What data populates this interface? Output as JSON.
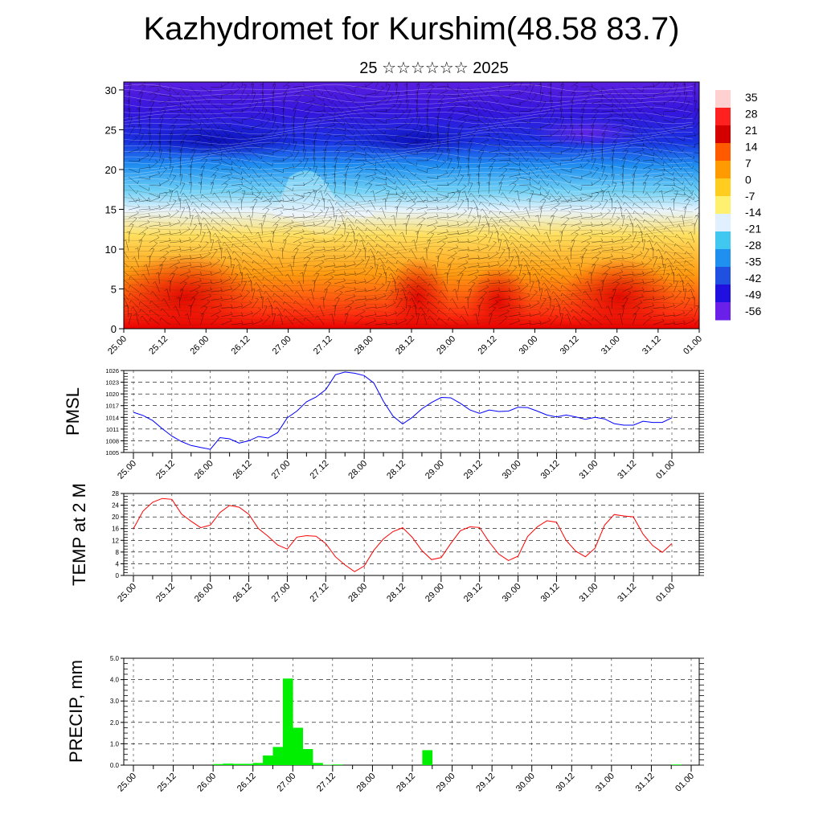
{
  "header": {
    "title": "Kazhydromet for Kurshim(48.58 83.7)",
    "subtitle": "25 ☆☆☆☆☆☆ 2025"
  },
  "colors": {
    "pmsl_line": "#0000ff",
    "temp_line": "#ff0000",
    "precip_bar": "#00ee00"
  },
  "chart_data": [
    {
      "type": "heatmap",
      "name": "cross-section",
      "x_ticks": [
        "25.00",
        "25.12",
        "26.00",
        "26.12",
        "27.00",
        "27.12",
        "28.00",
        "28.12",
        "29.00",
        "29.12",
        "30.00",
        "30.12",
        "31.00",
        "31.12",
        "01.00"
      ],
      "y_ticks": [
        0,
        5,
        10,
        15,
        20,
        25,
        30
      ],
      "ylim": [
        0,
        31
      ],
      "colorbar_labels": [
        "35",
        "28",
        "21",
        "14",
        "7",
        "0",
        "-7",
        "-14",
        "-21",
        "-28",
        "-35",
        "-42",
        "-49",
        "-56"
      ],
      "colorbar_range": [
        -63,
        42
      ],
      "colorbar_stops": [
        "#ffd0d0",
        "#ff2020",
        "#d40000",
        "#ff5a00",
        "#ff9a00",
        "#ffcc20",
        "#fff070",
        "#e0f0ff",
        "#40c8f0",
        "#1f8ff0",
        "#2050e0",
        "#2010e0",
        "#6a20e8"
      ]
    },
    {
      "type": "line",
      "name": "PMSL",
      "ylabel": "PMSL",
      "ylim": [
        1005,
        1026
      ],
      "y_ticks": [
        1005,
        1008,
        1011,
        1014,
        1017,
        1020,
        1023,
        1026
      ],
      "x_ticks": [
        "25.00",
        "25.12",
        "26.00",
        "26.12",
        "27.00",
        "27.12",
        "28.00",
        "28.12",
        "29.00",
        "29.12",
        "30.00",
        "30.12",
        "31.00",
        "31.12",
        "01.00"
      ],
      "x": [
        0,
        3,
        6,
        9,
        12,
        15,
        18,
        21,
        24,
        27,
        30,
        33,
        36,
        39,
        42,
        45,
        48,
        51,
        54,
        57,
        60,
        63,
        66,
        69,
        72,
        75,
        78,
        81,
        84,
        87,
        90,
        93,
        96,
        99,
        102,
        105,
        108,
        111,
        114,
        117,
        120,
        123,
        126,
        129,
        132,
        135,
        138,
        141,
        144,
        147,
        150,
        153,
        156,
        159,
        162,
        165,
        168
      ],
      "values": [
        1015.3,
        1014.5,
        1013.2,
        1011.1,
        1009.2,
        1007.8,
        1006.8,
        1006.3,
        1005.8,
        1008.8,
        1008.5,
        1007.4,
        1008,
        1009.1,
        1008.7,
        1010.1,
        1013.9,
        1015.6,
        1018,
        1019.2,
        1021.1,
        1024.9,
        1025.6,
        1025.3,
        1024.7,
        1022.8,
        1018.1,
        1014.3,
        1012.3,
        1014,
        1016.2,
        1017.8,
        1019.1,
        1019,
        1017.6,
        1015.9,
        1015,
        1015.9,
        1015.5,
        1015.6,
        1016.6,
        1016.5,
        1015.6,
        1014.6,
        1014.1,
        1014.6,
        1014.1,
        1013.5,
        1014,
        1013.6,
        1012.4,
        1012,
        1012,
        1013,
        1012.7,
        1012.7,
        1013.9
      ]
    },
    {
      "type": "line",
      "name": "TEMP at 2 M",
      "ylabel": "TEMP at 2 M",
      "ylim": [
        0,
        28
      ],
      "y_ticks": [
        0,
        4,
        8,
        12,
        16,
        20,
        24,
        28
      ],
      "x_ticks": [
        "25.00",
        "25.12",
        "26.00",
        "26.12",
        "27.00",
        "27.12",
        "28.00",
        "28.12",
        "29.00",
        "29.12",
        "30.00",
        "30.12",
        "31.00",
        "31.12",
        "01.00"
      ],
      "x": [
        0,
        3,
        6,
        9,
        12,
        15,
        18,
        21,
        24,
        27,
        30,
        33,
        36,
        39,
        42,
        45,
        48,
        51,
        54,
        57,
        60,
        63,
        66,
        69,
        72,
        75,
        78,
        81,
        84,
        87,
        90,
        93,
        96,
        99,
        102,
        105,
        108,
        111,
        114,
        117,
        120,
        123,
        126,
        129,
        132,
        135,
        138,
        141,
        144,
        147,
        150,
        153,
        156,
        159,
        162,
        165,
        168
      ],
      "values": [
        16,
        22,
        25,
        26.3,
        26,
        21,
        18.5,
        16.3,
        17.2,
        21.5,
        23.9,
        23.3,
        20.9,
        16,
        13.4,
        10.4,
        9,
        13.1,
        13.6,
        13.4,
        10.9,
        6.4,
        3.6,
        1.3,
        3.2,
        8.6,
        12.5,
        15,
        16.3,
        13,
        8.5,
        5.4,
        6.1,
        10.9,
        15.3,
        16.6,
        16.4,
        11.4,
        7.3,
        5.1,
        6.6,
        13.3,
        16.6,
        18.7,
        18.2,
        12,
        8.3,
        6.4,
        9.3,
        17.2,
        20.8,
        20.3,
        20,
        14.1,
        10.2,
        7.9,
        10.9
      ]
    },
    {
      "type": "bar",
      "name": "PRECIP",
      "ylabel": "PRECIP, mm",
      "ylim": [
        0,
        5
      ],
      "y_ticks": [
        "0.0",
        "1.0",
        "2.0",
        "3.0",
        "4.0",
        "5.0"
      ],
      "x_ticks": [
        "25.00",
        "25.12",
        "26.00",
        "26.12",
        "27.00",
        "27.12",
        "28.00",
        "28.12",
        "29.00",
        "29.12",
        "30.00",
        "30.12",
        "31.00",
        "31.12",
        "01.00"
      ],
      "bar_width_hours": 3,
      "x": [
        24,
        27,
        30,
        33,
        36,
        39,
        42,
        45,
        48,
        51,
        54,
        57,
        60,
        63,
        66,
        69,
        72,
        75,
        78,
        81,
        84,
        87,
        90,
        93,
        96,
        99,
        102,
        105,
        108,
        111,
        114,
        117,
        120,
        123,
        126,
        129,
        132,
        135,
        138,
        141,
        144,
        147,
        150,
        153,
        156,
        159,
        162,
        165
      ],
      "values": [
        0.05,
        0.07,
        0.06,
        0.06,
        0.1,
        0.45,
        0.85,
        4.05,
        1.75,
        0.75,
        0.1,
        0.02,
        0.03,
        0,
        0,
        0,
        0,
        0,
        0,
        0,
        0,
        0.7,
        0,
        0,
        0,
        0,
        0,
        0,
        0,
        0,
        0,
        0,
        0,
        0,
        0,
        0,
        0,
        0,
        0,
        0,
        0,
        0,
        0,
        0,
        0,
        0,
        0.03,
        0
      ]
    }
  ]
}
